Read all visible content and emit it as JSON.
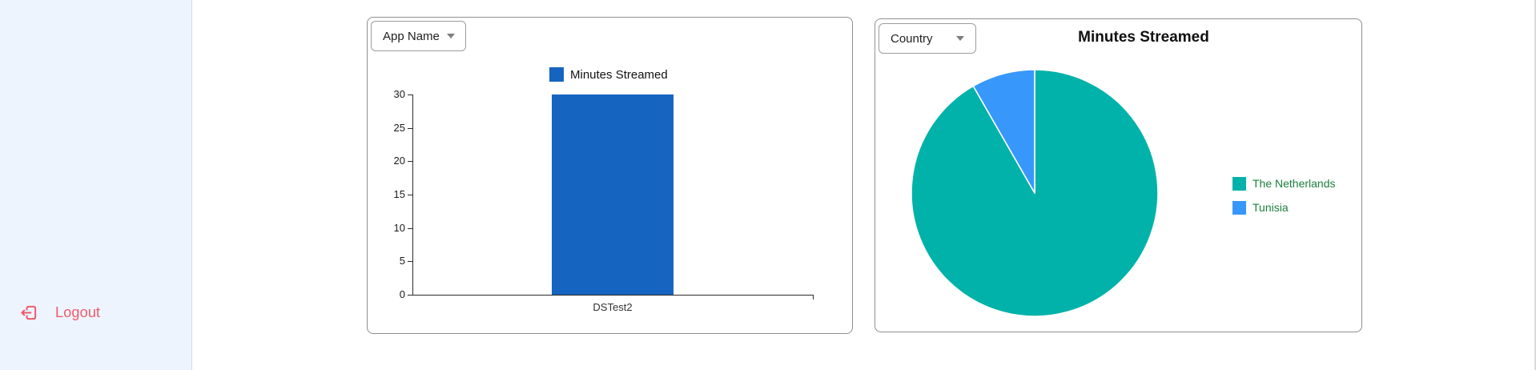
{
  "sidebar": {
    "logout": {
      "label": "Logout",
      "color": "#ee5b6a"
    }
  },
  "left_panel": {
    "dropdown": {
      "label": "App Name"
    },
    "legend": [
      {
        "label": "Minutes Streamed",
        "color": "#1565c0"
      }
    ],
    "x_axis_label": "DSTest2"
  },
  "right_panel": {
    "dropdown": {
      "label": "Country"
    },
    "title": "Minutes Streamed",
    "legend": [
      {
        "label": "The Netherlands",
        "color": "#00b2a9"
      },
      {
        "label": "Tunisia",
        "color": "#3797fb"
      }
    ],
    "legend_text_color": "#1a7f3c"
  },
  "chart_data": [
    {
      "type": "bar",
      "title": "",
      "categories": [
        "DSTest2"
      ],
      "series": [
        {
          "name": "Minutes Streamed",
          "values": [
            30
          ],
          "color": "#1565c0"
        }
      ],
      "ylim": [
        0,
        30
      ],
      "yticks": [
        0,
        5,
        10,
        15,
        20,
        25,
        30
      ],
      "grid": false,
      "legend_position": "top"
    },
    {
      "type": "pie",
      "title": "Minutes Streamed",
      "labels": [
        "The Netherlands",
        "Tunisia"
      ],
      "values_percent": [
        91.7,
        8.3
      ],
      "colors": [
        "#00b2a9",
        "#3797fb"
      ],
      "start_angle_deg": 0,
      "direction": "clockwise",
      "legend_position": "right"
    }
  ]
}
